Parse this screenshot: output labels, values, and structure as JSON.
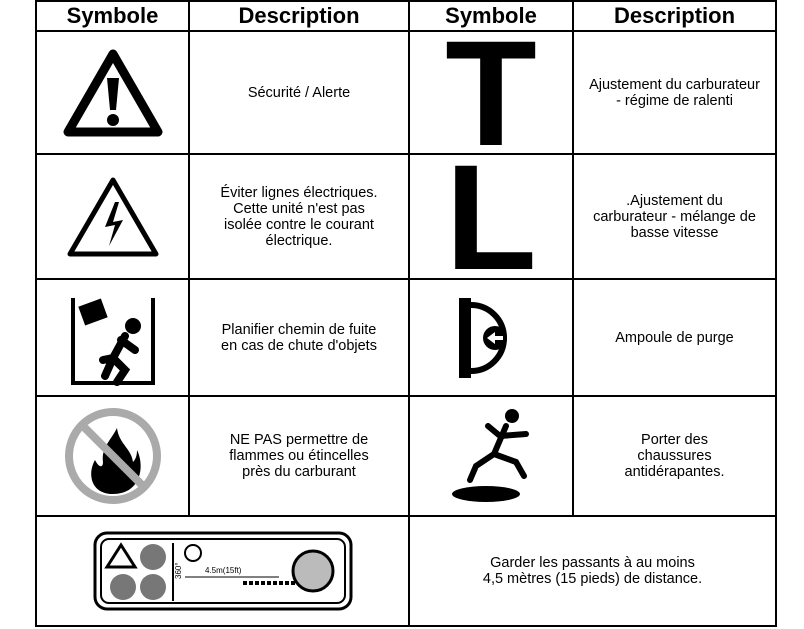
{
  "table": {
    "header": [
      "Symbole",
      "Description",
      "Symbole",
      "Description"
    ],
    "rows": [
      {
        "left_description": [
          "Sécurité / Alerte"
        ],
        "right_symbol": "T",
        "right_description": [
          "Ajustement du carburateur",
          "- régime de ralenti"
        ]
      },
      {
        "left_description": [
          "Éviter lignes électriques.",
          "Cette unité n'est pas",
          "isolée contre le courant",
          "électrique."
        ],
        "right_symbol": "L",
        "right_description": [
          ".Ajustement du",
          "carburateur - mélange de",
          "basse vitesse"
        ]
      },
      {
        "left_description": [
          "Planifier chemin de fuite",
          "en cas de chute d'objets"
        ],
        "right_description": [
          "Ampoule de purge"
        ]
      },
      {
        "left_description": [
          "NE PAS permettre de",
          "flammes ou étincelles",
          "près du carburant"
        ],
        "right_description": [
          "Porter des",
          "chaussures",
          "antidérapantes."
        ]
      }
    ],
    "footer": {
      "icon_angle": "360°",
      "icon_distance": "4.5m(15ft)",
      "description": [
        "Garder les passants à au moins",
        "4,5 mètres (15 pieds) de distance."
      ]
    }
  }
}
